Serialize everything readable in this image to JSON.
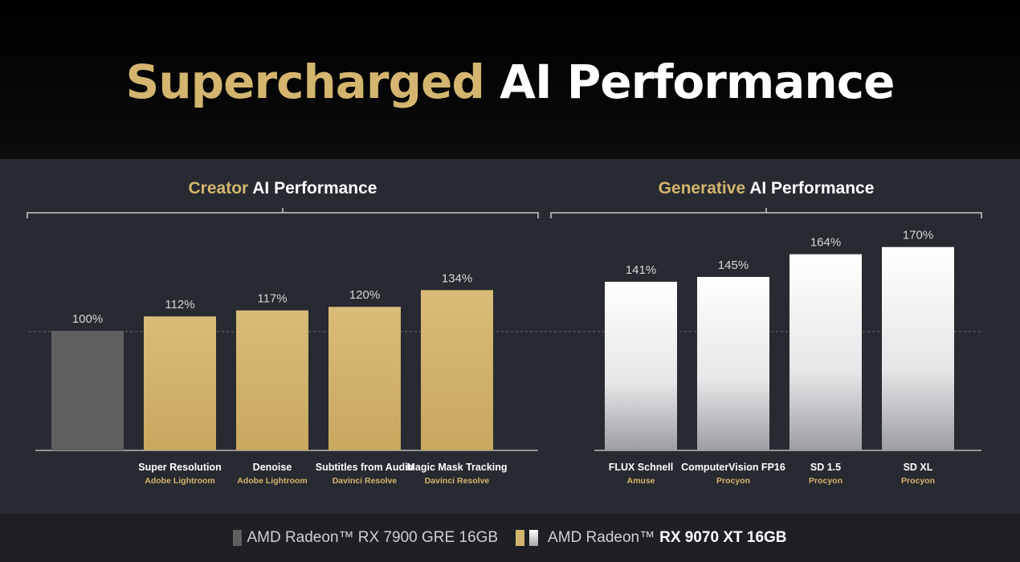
{
  "title": {
    "highlight": "Supercharged",
    "rest": "AI Performance"
  },
  "colors": {
    "gold": "#d4b56f",
    "baseline_gray": "#5f5f5f",
    "white_bar": "#ffffff",
    "panel_bg": "#272a30"
  },
  "legend": [
    {
      "text": "AMD Radeon™ RX 7900 GRE 16GB",
      "swatch": "gray"
    },
    {
      "prefix": "AMD Radeon™",
      "strong": "RX 9070 XT 16GB",
      "swatch": "gold-white"
    }
  ],
  "chart_data": [
    {
      "type": "bar",
      "title": {
        "highlight": "Creator",
        "rest": "AI Performance"
      },
      "categories": [
        "",
        "Super Resolution",
        "Denoise",
        "Subtitles from Audio",
        "Magic Mask Tracking"
      ],
      "sublabels": [
        "",
        "Adobe Lightroom",
        "Adobe Lightroom",
        "Davinci Resolve",
        "Davinci Resolve"
      ],
      "values": [
        100,
        112,
        117,
        120,
        134
      ],
      "value_labels": [
        "100%",
        "112%",
        "117%",
        "120%",
        "134%"
      ],
      "bar_styles": [
        "gray",
        "gold",
        "gold",
        "gold",
        "gold"
      ],
      "baseline": 100
    },
    {
      "type": "bar",
      "title": {
        "highlight": "Generative",
        "rest": "AI Performance"
      },
      "categories": [
        "FLUX Schnell",
        "ComputerVision FP16",
        "SD 1.5",
        "SD XL"
      ],
      "sublabels": [
        "Amuse",
        "Procyon",
        "Procyon",
        "Procyon"
      ],
      "values": [
        141,
        145,
        164,
        170
      ],
      "value_labels": [
        "141%",
        "145%",
        "164%",
        "170%"
      ],
      "bar_styles": [
        "white",
        "white",
        "white",
        "white"
      ],
      "baseline": 100
    }
  ]
}
